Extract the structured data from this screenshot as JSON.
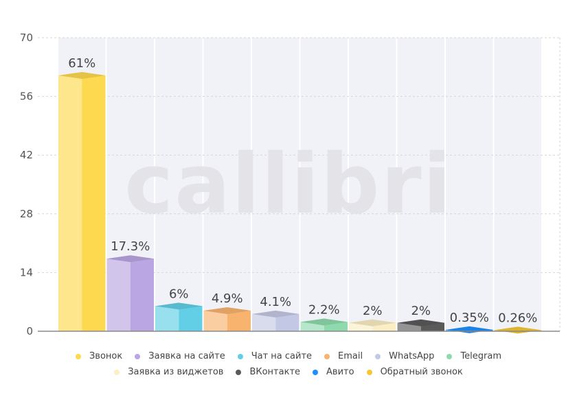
{
  "chart_data": {
    "type": "bar",
    "title": "",
    "xlabel": "",
    "ylabel": "",
    "ylim": [
      0,
      70
    ],
    "yticks": [
      0,
      14,
      28,
      42,
      56,
      70
    ],
    "grid": true,
    "legend_position": "bottom",
    "watermark": "callibri",
    "categories": [
      "Звонок",
      "Заявка на сайте",
      "Чат на сайте",
      "Email",
      "WhatsApp",
      "Telegram",
      "Заявка из виджетов",
      "ВКонтакте",
      "Авито",
      "Обратный звонок"
    ],
    "values": [
      61,
      17.3,
      6,
      4.9,
      4.1,
      2.2,
      2,
      2,
      0.35,
      0.26
    ],
    "labels": [
      "61%",
      "17.3%",
      "6%",
      "4.9%",
      "4.1%",
      "2.2%",
      "2%",
      "2%",
      "0.35%",
      "0.26%"
    ],
    "colors": [
      "#fdd94f",
      "#b9a6e2",
      "#62cfe6",
      "#f8b36f",
      "#c3c9e4",
      "#8edaad",
      "#fbeec4",
      "#5a5a5a",
      "#1e90ff",
      "#f5c832"
    ]
  }
}
